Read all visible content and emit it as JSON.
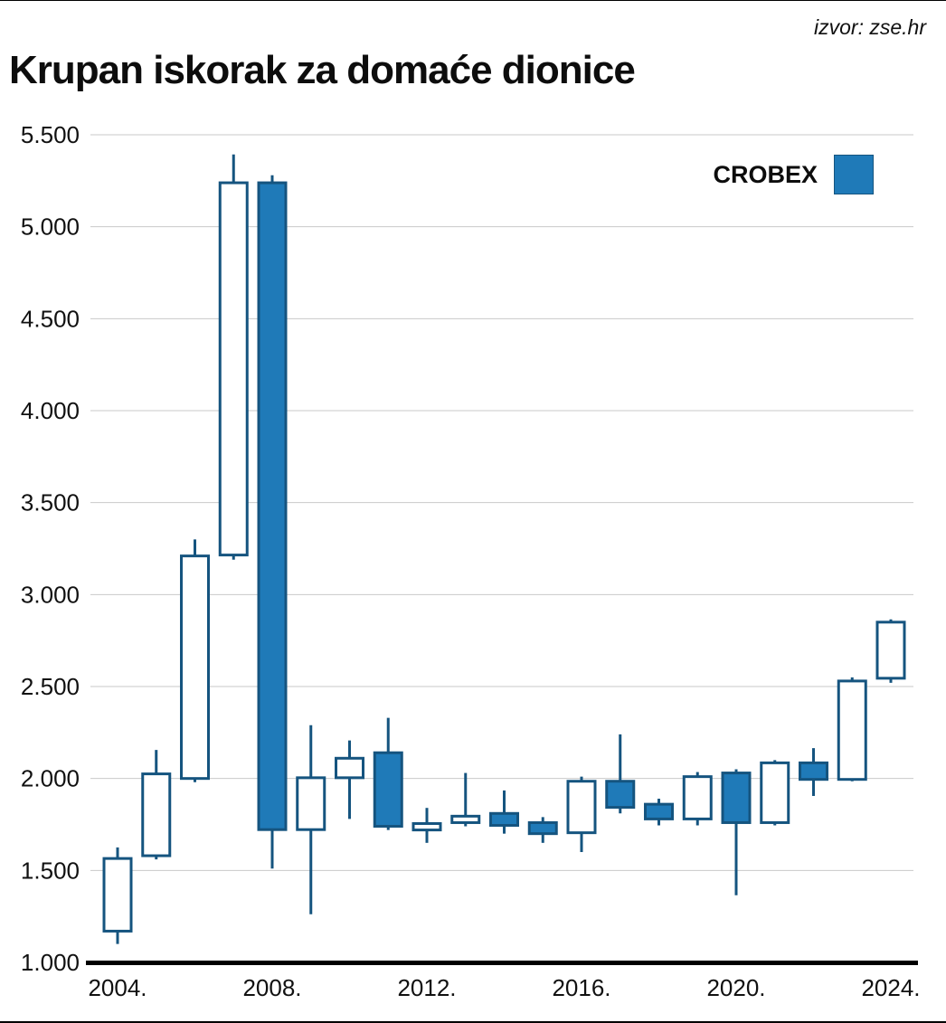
{
  "header": {
    "source_label": "izvor: zse.hr"
  },
  "title": "Krupan iskorak za domaće dionice",
  "chart_data": {
    "type": "candlestick",
    "title": "Krupan iskorak za domaće dionice",
    "legend": "CROBEX",
    "series_name": "CROBEX",
    "ylim": [
      1000,
      5500
    ],
    "grid": true,
    "legend_position": "top-right",
    "colors": {
      "bearish_fill": "#1f7ab8",
      "bullish_fill": "#ffffff",
      "stroke": "#15547f",
      "grid": "#c9c9c9",
      "axis": "#000000"
    },
    "y_ticks": [
      {
        "label": "1.000",
        "value": 1000
      },
      {
        "label": "1.500",
        "value": 1500
      },
      {
        "label": "2.000",
        "value": 2000
      },
      {
        "label": "2.500",
        "value": 2500
      },
      {
        "label": "3.000",
        "value": 3000
      },
      {
        "label": "3.500",
        "value": 3500
      },
      {
        "label": "4.000",
        "value": 4000
      },
      {
        "label": "4.500",
        "value": 4500
      },
      {
        "label": "5.000",
        "value": 5000
      },
      {
        "label": "5.500",
        "value": 5500
      }
    ],
    "x_ticks": [
      {
        "label": "2004.",
        "year": 2004
      },
      {
        "label": "2008.",
        "year": 2008
      },
      {
        "label": "2012.",
        "year": 2012
      },
      {
        "label": "2016.",
        "year": 2016
      },
      {
        "label": "2020.",
        "year": 2020
      },
      {
        "label": "2024.",
        "year": 2024
      }
    ],
    "candles": [
      {
        "year": 2004,
        "open": 1170,
        "high": 1625,
        "low": 1100,
        "close": 1565
      },
      {
        "year": 2005,
        "open": 1580,
        "high": 2155,
        "low": 1560,
        "close": 2025
      },
      {
        "year": 2006,
        "open": 2000,
        "high": 3300,
        "low": 1980,
        "close": 3210
      },
      {
        "year": 2007,
        "open": 3215,
        "high": 5393,
        "low": 3190,
        "close": 5239
      },
      {
        "year": 2008,
        "open": 5239,
        "high": 5280,
        "low": 1510,
        "close": 1722
      },
      {
        "year": 2009,
        "open": 1722,
        "high": 2290,
        "low": 1262,
        "close": 2004
      },
      {
        "year": 2010,
        "open": 2004,
        "high": 2207,
        "low": 1780,
        "close": 2110
      },
      {
        "year": 2011,
        "open": 2140,
        "high": 2330,
        "low": 1720,
        "close": 1740
      },
      {
        "year": 2012,
        "open": 1720,
        "high": 1840,
        "low": 1650,
        "close": 1755
      },
      {
        "year": 2013,
        "open": 1760,
        "high": 2030,
        "low": 1740,
        "close": 1795
      },
      {
        "year": 2014,
        "open": 1810,
        "high": 1935,
        "low": 1700,
        "close": 1745
      },
      {
        "year": 2015,
        "open": 1760,
        "high": 1790,
        "low": 1650,
        "close": 1700
      },
      {
        "year": 2016,
        "open": 1705,
        "high": 2010,
        "low": 1600,
        "close": 1985
      },
      {
        "year": 2017,
        "open": 1985,
        "high": 2240,
        "low": 1810,
        "close": 1843
      },
      {
        "year": 2018,
        "open": 1860,
        "high": 1890,
        "low": 1745,
        "close": 1780
      },
      {
        "year": 2019,
        "open": 1780,
        "high": 2035,
        "low": 1745,
        "close": 2010
      },
      {
        "year": 2020,
        "open": 2030,
        "high": 2050,
        "low": 1365,
        "close": 1760
      },
      {
        "year": 2021,
        "open": 1760,
        "high": 2100,
        "low": 1745,
        "close": 2085
      },
      {
        "year": 2022,
        "open": 2085,
        "high": 2165,
        "low": 1905,
        "close": 1995
      },
      {
        "year": 2023,
        "open": 1995,
        "high": 2550,
        "low": 1985,
        "close": 2530
      },
      {
        "year": 2024,
        "open": 2545,
        "high": 2865,
        "low": 2520,
        "close": 2850
      }
    ]
  }
}
